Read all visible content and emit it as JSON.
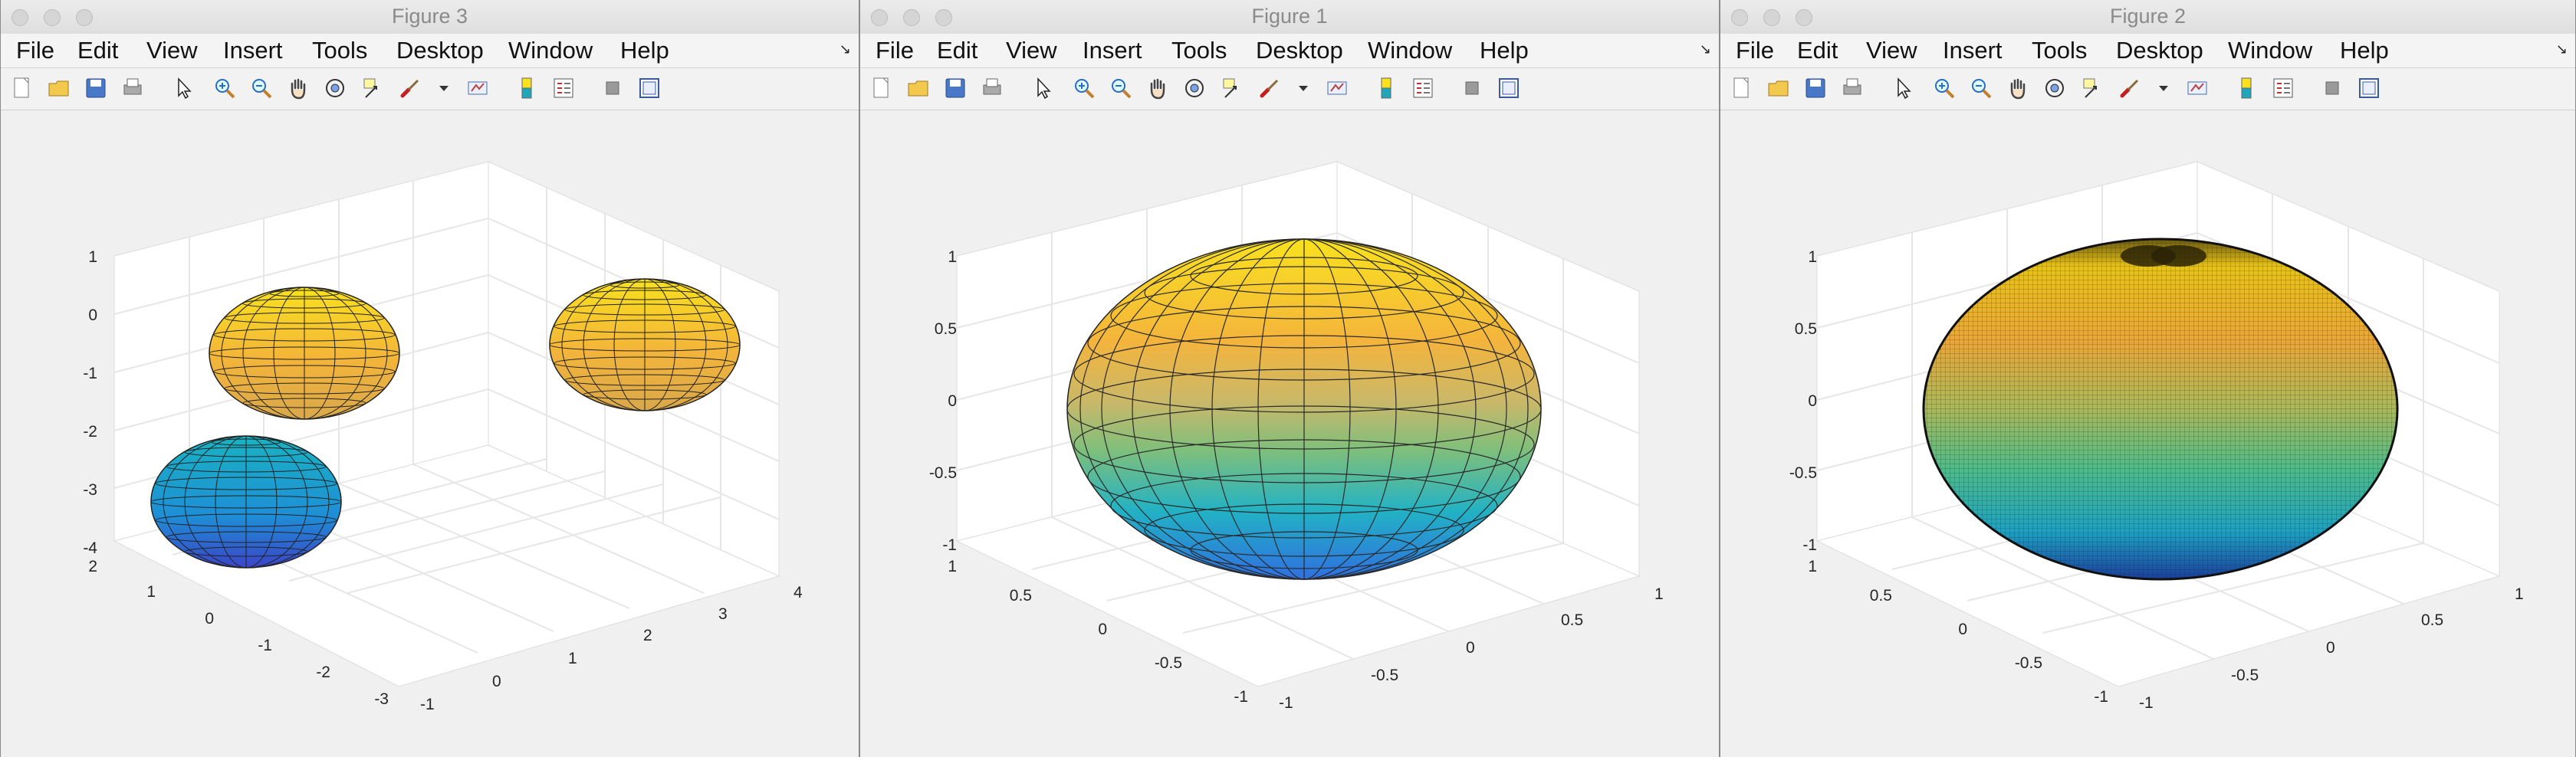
{
  "windows": [
    {
      "id": "w3",
      "title": "Figure 3",
      "ticks": {
        "z": [
          "1",
          "0",
          "-1",
          "-2",
          "-3",
          "-4"
        ],
        "y": [
          "2",
          "1",
          "0",
          "-1",
          "-2",
          "-3"
        ],
        "x": [
          "-1",
          "0",
          "1",
          "2",
          "3",
          "4"
        ]
      }
    },
    {
      "id": "w1",
      "title": "Figure 1",
      "ticks": {
        "z": [
          "1",
          "0.5",
          "0",
          "-0.5",
          "-1"
        ],
        "y": [
          "1",
          "0.5",
          "0",
          "-0.5",
          "-1"
        ],
        "x": [
          "-1",
          "-0.5",
          "0",
          "0.5",
          "1"
        ]
      }
    },
    {
      "id": "w2",
      "title": "Figure 2",
      "ticks": {
        "z": [
          "1",
          "0.5",
          "0",
          "-0.5",
          "-1"
        ],
        "y": [
          "1",
          "0.5",
          "0",
          "-0.5",
          "-1"
        ],
        "x": [
          "-1",
          "-0.5",
          "0",
          "0.5",
          "1"
        ]
      }
    }
  ],
  "menu": [
    "File",
    "Edit",
    "View",
    "Insert",
    "Tools",
    "Desktop",
    "Window",
    "Help"
  ],
  "toolbar_icons": [
    "new-figure-icon",
    "open-file-icon",
    "save-icon",
    "print-icon",
    "edit-plot-arrow-icon",
    "zoom-in-icon",
    "zoom-out-icon",
    "pan-hand-icon",
    "rotate-3d-icon",
    "data-cursor-icon",
    "brush-icon",
    "brush-dropdown-icon",
    "link-plot-icon",
    "colorbar-icon",
    "legend-icon",
    "hide-plot-tools-icon",
    "show-plot-tools-icon"
  ],
  "colors": {
    "parula_top": "#f9e11e",
    "parula_mid": "#e8b33c",
    "parula_green": "#7fbf7b",
    "parula_teal": "#1fa6b8",
    "parula_bottom": "#3050d0",
    "axes_background": "#ffffff",
    "grid": "#e6e6e6"
  }
}
